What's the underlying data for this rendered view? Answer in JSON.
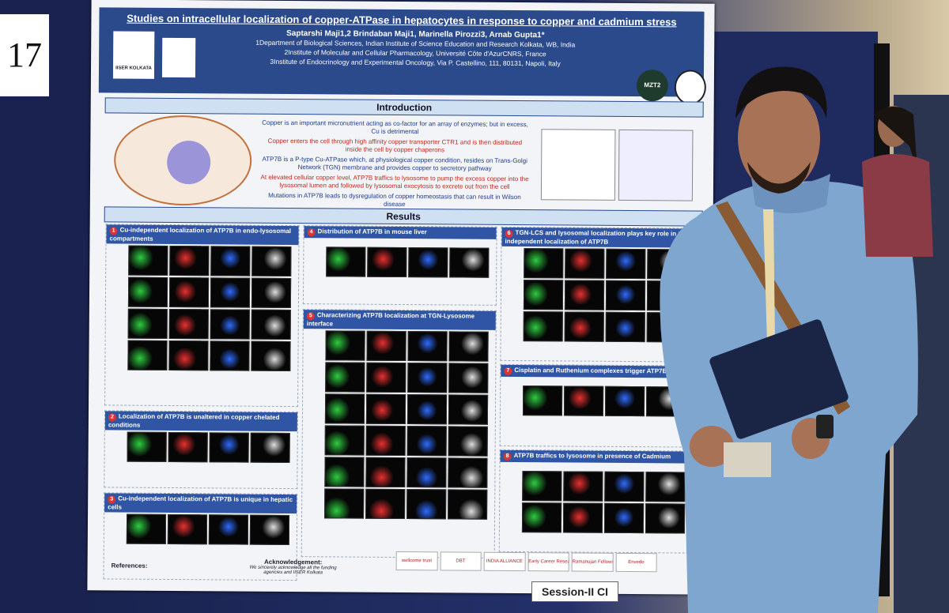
{
  "sign": "17",
  "poster": {
    "title": "Studies on intracellular localization of copper-ATPase in hepatocytes in response to copper and cadmium stress",
    "authors": "Saptarshi Maji1,2 Brindaban Maji1, Marinella Pirozzi3, Arnab Gupta1*",
    "affiliations": [
      "1Department of Biological Sciences, Indian Institute of Science Education and Research Kolkata, WB, India",
      "2Institute of Molecular and Cellular Pharmacology, Université Côte d'AzurCNRS, France",
      "3Institute of Endocrinology and Experimental Oncology, Via P. Castellino, 111, 80131, Napoli, Italy"
    ],
    "logo_text": "IISER KOLKATA",
    "conference_logo": "MZT2",
    "introduction": {
      "heading": "Introduction",
      "bullets": [
        "Copper is an important micronutrient acting as co-factor for an array of enzymes; but in excess, Cu is detrimental",
        "Copper enters the cell through high affinity copper transporter CTR1 and is then distributed inside the cell by copper chaperons",
        "ATP7B is a P-type Cu-ATPase which, at physiological copper condition, resides on Trans-Golgi Network (TGN) membrane and provides copper to secretory pathway",
        "At elevated cellular copper level, ATP7B traffics to lysosome to pump the excess copper into the lysosomal lumen and followed by lysosomal exocytosis to excrete out from the cell",
        "Mutations in ATP7B leads to dysregulation of copper homeostasis that can result in Wilson disease"
      ]
    },
    "results": {
      "heading": "Results",
      "panels": [
        {
          "number": "1",
          "title": "Cu-independent localization of ATP7B in endo-lysosomal compartments"
        },
        {
          "number": "2",
          "title": "Localization of ATP7B is unaltered in copper chelated conditions"
        },
        {
          "number": "3",
          "title": "Cu-independent localization of ATP7B is unique in hepatic cells"
        },
        {
          "number": "4",
          "title": "Distribution of ATP7B in mouse liver"
        },
        {
          "number": "5",
          "title": "Characterizing ATP7B localization at TGN-Lysosome interface"
        },
        {
          "number": "6",
          "title": "TGN-LCS and lysosomal localization plays key role in Cu-independent localization of ATP7B"
        },
        {
          "number": "7",
          "title": "Cisplatin and Ruthenium complexes trigger ATP7B traffic"
        },
        {
          "number": "8",
          "title": "ATP7B traffics to lysosome in presence of Cadmium"
        }
      ]
    },
    "acknowledgement": {
      "heading": "Acknowledgement:",
      "text": "We sincerely acknowledge all the funding agencies and IISER Kolkata"
    },
    "references": "References:",
    "sponsors": [
      "wellcome trust",
      "DBT",
      "INDIA ALLIANCE",
      "Early Career Research Award",
      "Ramanujan Fellowship",
      "Envedo"
    ]
  },
  "session_label": "Session-II CI"
}
